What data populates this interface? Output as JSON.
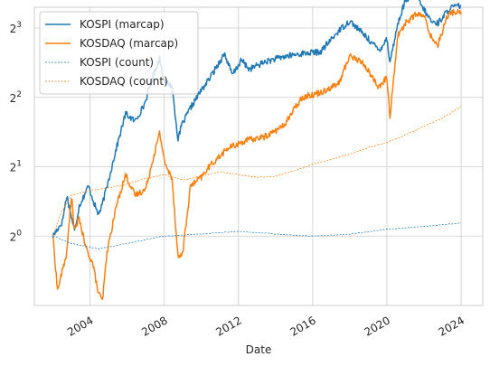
{
  "chart_data": {
    "type": "line",
    "xlabel": "Date",
    "ylabel": "",
    "y_scale": "log2",
    "xlim": [
      "2001-01",
      "2025-03"
    ],
    "ylim_log2": [
      -1.0,
      3.3
    ],
    "grid": true,
    "legend_position": "top-left",
    "x_ticks": [
      {
        "value": "2004-01",
        "label": "2004"
      },
      {
        "value": "2008-01",
        "label": "2008"
      },
      {
        "value": "2012-01",
        "label": "2012"
      },
      {
        "value": "2016-01",
        "label": "2016"
      },
      {
        "value": "2020-01",
        "label": "2020"
      },
      {
        "value": "2024-01",
        "label": "2024"
      }
    ],
    "y_ticks": [
      {
        "value": 1,
        "base": "2",
        "exp": "0"
      },
      {
        "value": 2,
        "base": "2",
        "exp": "1"
      },
      {
        "value": 4,
        "base": "2",
        "exp": "2"
      },
      {
        "value": 8,
        "base": "2",
        "exp": "3"
      }
    ],
    "series": [
      {
        "name": "KOSPI (marcap)",
        "color": "#1f77b4",
        "style": "solid",
        "points": [
          [
            "2002-01",
            1.0
          ],
          [
            "2002-07",
            1.15
          ],
          [
            "2002-10",
            1.5
          ],
          [
            "2003-03",
            1.05
          ],
          [
            "2003-06",
            1.35
          ],
          [
            "2003-12",
            1.65
          ],
          [
            "2004-06",
            1.25
          ],
          [
            "2004-08",
            1.3
          ],
          [
            "2005-01",
            1.75
          ],
          [
            "2005-06",
            2.4
          ],
          [
            "2005-12",
            3.4
          ],
          [
            "2006-06",
            3.15
          ],
          [
            "2006-12",
            3.7
          ],
          [
            "2007-06",
            5.0
          ],
          [
            "2007-10",
            5.9
          ],
          [
            "2008-01",
            4.7
          ],
          [
            "2008-06",
            4.5
          ],
          [
            "2008-10",
            2.6
          ],
          [
            "2008-12",
            3.0
          ],
          [
            "2009-06",
            3.6
          ],
          [
            "2009-12",
            4.2
          ],
          [
            "2010-06",
            4.8
          ],
          [
            "2011-04",
            6.2
          ],
          [
            "2011-09",
            5.0
          ],
          [
            "2012-03",
            5.8
          ],
          [
            "2012-08",
            5.3
          ],
          [
            "2013-06",
            5.7
          ],
          [
            "2014-06",
            6.0
          ],
          [
            "2015-06",
            6.2
          ],
          [
            "2016-06",
            6.3
          ],
          [
            "2017-06",
            7.8
          ],
          [
            "2018-01",
            8.6
          ],
          [
            "2018-11",
            7.4
          ],
          [
            "2019-08",
            6.4
          ],
          [
            "2020-01",
            7.2
          ],
          [
            "2020-03",
            5.7
          ],
          [
            "2020-08",
            8.3
          ],
          [
            "2021-01",
            10.6
          ],
          [
            "2021-07",
            11.2
          ],
          [
            "2022-01",
            9.6
          ],
          [
            "2022-06",
            8.5
          ],
          [
            "2022-10",
            8.4
          ],
          [
            "2023-06",
            9.8
          ],
          [
            "2024-01",
            10.0
          ]
        ]
      },
      {
        "name": "KOSDAQ (marcap)",
        "color": "#ff7f0e",
        "style": "solid",
        "points": [
          [
            "2002-01",
            1.0
          ],
          [
            "2002-04",
            0.58
          ],
          [
            "2002-10",
            0.85
          ],
          [
            "2003-01",
            1.5
          ],
          [
            "2003-03",
            1.05
          ],
          [
            "2003-06",
            1.2
          ],
          [
            "2003-10",
            0.9
          ],
          [
            "2004-03",
            0.75
          ],
          [
            "2004-06",
            0.58
          ],
          [
            "2004-09",
            0.52
          ],
          [
            "2004-12",
            0.85
          ],
          [
            "2005-06",
            1.35
          ],
          [
            "2005-12",
            1.85
          ],
          [
            "2006-06",
            1.5
          ],
          [
            "2007-01",
            1.6
          ],
          [
            "2007-06",
            2.2
          ],
          [
            "2007-10",
            2.8
          ],
          [
            "2008-02",
            2.0
          ],
          [
            "2008-06",
            1.8
          ],
          [
            "2008-10",
            0.8
          ],
          [
            "2009-01",
            0.85
          ],
          [
            "2009-06",
            1.65
          ],
          [
            "2010-01",
            1.8
          ],
          [
            "2010-06",
            2.0
          ],
          [
            "2011-06",
            2.4
          ],
          [
            "2012-06",
            2.6
          ],
          [
            "2013-06",
            2.7
          ],
          [
            "2014-06",
            3.0
          ],
          [
            "2015-06",
            4.0
          ],
          [
            "2016-06",
            4.2
          ],
          [
            "2017-06",
            4.6
          ],
          [
            "2018-01",
            6.1
          ],
          [
            "2018-10",
            5.6
          ],
          [
            "2019-08",
            4.4
          ],
          [
            "2020-01",
            4.9
          ],
          [
            "2020-03",
            3.3
          ],
          [
            "2020-08",
            7.4
          ],
          [
            "2021-01",
            8.4
          ],
          [
            "2021-08",
            9.2
          ],
          [
            "2022-01",
            9.0
          ],
          [
            "2022-06",
            7.2
          ],
          [
            "2022-10",
            6.8
          ],
          [
            "2023-04",
            9.0
          ],
          [
            "2023-08",
            9.4
          ],
          [
            "2024-01",
            9.4
          ]
        ]
      },
      {
        "name": "KOSPI (count)",
        "color": "#1f77b4",
        "style": "dashed",
        "points": [
          [
            "2002-01",
            1.0
          ],
          [
            "2003-01",
            0.93
          ],
          [
            "2004-06",
            0.88
          ],
          [
            "2006-01",
            0.93
          ],
          [
            "2008-01",
            1.0
          ],
          [
            "2010-01",
            1.02
          ],
          [
            "2012-01",
            1.05
          ],
          [
            "2014-01",
            1.02
          ],
          [
            "2016-01",
            1.0
          ],
          [
            "2018-01",
            1.02
          ],
          [
            "2020-01",
            1.07
          ],
          [
            "2022-01",
            1.1
          ],
          [
            "2024-01",
            1.14
          ]
        ]
      },
      {
        "name": "KOSDAQ (count)",
        "color": "#ff7f0e",
        "style": "dashed",
        "points": [
          [
            "2002-01",
            1.0
          ],
          [
            "2002-06",
            1.25
          ],
          [
            "2003-01",
            1.5
          ],
          [
            "2004-01",
            1.58
          ],
          [
            "2005-01",
            1.62
          ],
          [
            "2006-01",
            1.68
          ],
          [
            "2007-01",
            1.78
          ],
          [
            "2008-01",
            1.85
          ],
          [
            "2009-01",
            1.75
          ],
          [
            "2010-01",
            1.82
          ],
          [
            "2011-01",
            1.9
          ],
          [
            "2012-01",
            1.85
          ],
          [
            "2013-01",
            1.8
          ],
          [
            "2014-01",
            1.82
          ],
          [
            "2015-01",
            1.92
          ],
          [
            "2016-01",
            2.05
          ],
          [
            "2017-01",
            2.15
          ],
          [
            "2018-01",
            2.27
          ],
          [
            "2019-01",
            2.42
          ],
          [
            "2020-01",
            2.55
          ],
          [
            "2021-01",
            2.75
          ],
          [
            "2022-01",
            3.0
          ],
          [
            "2023-01",
            3.25
          ],
          [
            "2024-01",
            3.65
          ]
        ]
      }
    ]
  }
}
